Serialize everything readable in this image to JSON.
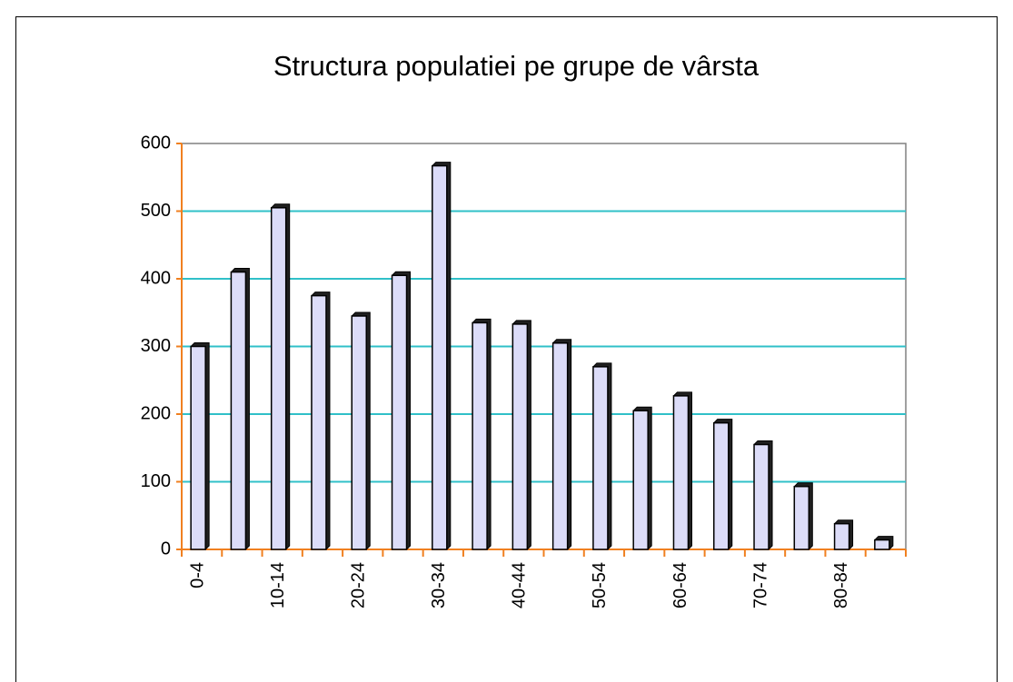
{
  "chart_data": {
    "type": "bar",
    "title": "Structura populatiei pe grupe de vârsta",
    "categories": [
      "0-4",
      null,
      "10-14",
      null,
      "20-24",
      null,
      "30-34",
      null,
      "40-44",
      null,
      "50-54",
      null,
      "60-64",
      null,
      "70-74",
      null,
      "80-84",
      null
    ],
    "values": [
      300,
      410,
      505,
      375,
      345,
      405,
      567,
      335,
      333,
      305,
      270,
      205,
      227,
      187,
      155,
      93,
      38,
      14
    ],
    "color": "#dcdcf8",
    "ylim": [
      0,
      600
    ],
    "yticks": [
      0,
      100,
      200,
      300,
      400,
      500,
      600
    ],
    "grid": true
  }
}
